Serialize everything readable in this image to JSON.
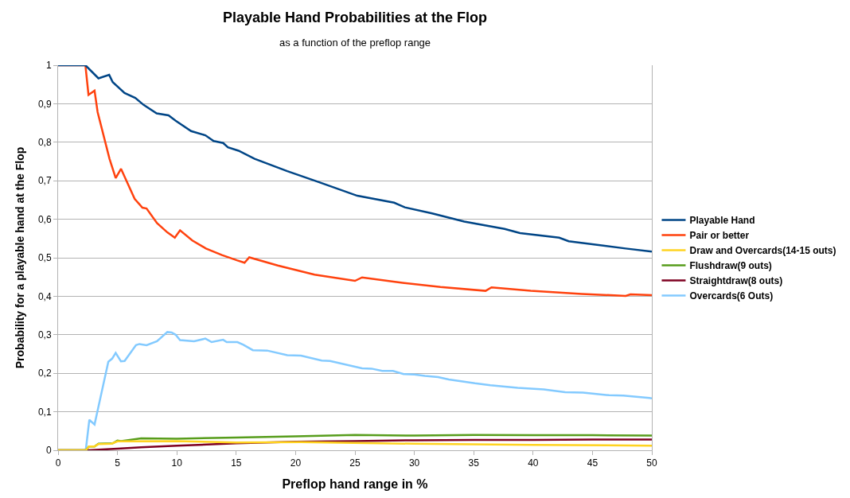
{
  "chart_data": {
    "type": "line",
    "title": "Playable Hand Probabilities at the Flop",
    "subtitle": "as a function of the preflop range",
    "xlabel": "Preflop hand range in %",
    "ylabel": "Probability for a playable hand at the Flop",
    "xlim": [
      0,
      50
    ],
    "xticks": [
      0,
      5,
      10,
      15,
      20,
      25,
      30,
      35,
      40,
      45,
      50
    ],
    "ylim": [
      0,
      1
    ],
    "yticks": [
      0,
      {
        "value": 0.1,
        "label": "0,1"
      },
      {
        "value": 0.2,
        "label": "0,2"
      },
      {
        "value": 0.3,
        "label": "0,3"
      },
      {
        "value": 0.4,
        "label": "0,4"
      },
      {
        "value": 0.5,
        "label": "0,5"
      },
      {
        "value": 0.6,
        "label": "0,6"
      },
      {
        "value": 0.7,
        "label": "0,7"
      },
      {
        "value": 0.8,
        "label": "0,8"
      },
      {
        "value": 0.9,
        "label": "0,9"
      },
      1
    ],
    "grid": "y",
    "legend": "right",
    "marker": "none",
    "line_style": "solid",
    "series": [
      {
        "name": "Playable Hand",
        "color": "#004586",
        "x": [
          0,
          2.3,
          3.4,
          4.3,
          4.6,
          5.6,
          6.5,
          7.2,
          8.3,
          9.3,
          9.9,
          11.2,
          12.4,
          13.1,
          13.9,
          14.3,
          15.2,
          16.55,
          19.3,
          22,
          25.2,
          28.3,
          29.2,
          31.5,
          34.2,
          37.6,
          38.9,
          42.2,
          43,
          47.8,
          50
        ],
        "values": [
          1,
          1,
          0.966,
          0.975,
          0.956,
          0.928,
          0.915,
          0.897,
          0.875,
          0.87,
          0.856,
          0.829,
          0.818,
          0.803,
          0.798,
          0.787,
          0.778,
          0.757,
          0.725,
          0.696,
          0.661,
          0.643,
          0.631,
          0.615,
          0.594,
          0.575,
          0.564,
          0.552,
          0.543,
          0.524,
          0.516
        ]
      },
      {
        "name": "Pair or better",
        "color": "#ff420e",
        "x": [
          0,
          2.3,
          2.56,
          3.07,
          3.33,
          4.33,
          4.85,
          5.3,
          6.45,
          7.1,
          7.45,
          8.33,
          9.2,
          9.83,
          10.27,
          11.3,
          12.45,
          13.8,
          15.1,
          15.7,
          16.1,
          18.5,
          21.6,
          25,
          25.6,
          29,
          32.2,
          36,
          36.5,
          39.8,
          44.1,
          47.8,
          48.2,
          50
        ],
        "values": [
          1,
          1,
          0.923,
          0.934,
          0.878,
          0.757,
          0.707,
          0.731,
          0.653,
          0.63,
          0.628,
          0.59,
          0.566,
          0.552,
          0.571,
          0.545,
          0.524,
          0.507,
          0.493,
          0.487,
          0.501,
          0.48,
          0.456,
          0.44,
          0.449,
          0.435,
          0.424,
          0.414,
          0.423,
          0.414,
          0.406,
          0.401,
          0.405,
          0.403
        ]
      },
      {
        "name": "Draw and Overcards(14-15 outs)",
        "color": "#ffd320",
        "x": [
          0,
          2.33,
          2.6,
          3.07,
          3.4,
          4.5,
          5,
          10,
          15,
          20.45,
          30,
          40,
          50
        ],
        "values": [
          0,
          0,
          0.01,
          0.01,
          0.016,
          0.017,
          0.023,
          0.024,
          0.02,
          0.021,
          0.017,
          0.014,
          0.012
        ]
      },
      {
        "name": "Flushdraw(9 outs)",
        "color": "#579d1c",
        "x": [
          0,
          2.33,
          2.6,
          3.07,
          3.4,
          4.6,
          5,
          5.3,
          7,
          10,
          15,
          20,
          25,
          30,
          35,
          40,
          45,
          50
        ],
        "values": [
          0,
          0,
          0.01,
          0.01,
          0.017,
          0.018,
          0.025,
          0.024,
          0.031,
          0.03,
          0.033,
          0.036,
          0.04,
          0.038,
          0.04,
          0.039,
          0.039,
          0.038
        ]
      },
      {
        "name": "Straightdraw(8 outs)",
        "color": "#7e0021",
        "x": [
          0,
          2.5,
          5,
          7,
          10,
          15,
          20,
          25,
          30,
          35,
          40,
          45,
          50
        ],
        "values": [
          0,
          0,
          0.004,
          0.008,
          0.012,
          0.018,
          0.022,
          0.024,
          0.026,
          0.027,
          0.027,
          0.028,
          0.028
        ]
      },
      {
        "name": "Overcards(6 Outs)",
        "color": "#83caff",
        "x": [
          0,
          2.33,
          2.63,
          3.07,
          4.23,
          4.55,
          4.85,
          5.29,
          5.6,
          6.56,
          6.85,
          7.45,
          8.33,
          9.2,
          9.56,
          9.9,
          10.27,
          11.45,
          12.4,
          12.93,
          13.9,
          14.2,
          15.1,
          15.6,
          16.4,
          17.6,
          19.3,
          20.45,
          22.2,
          22.9,
          25.6,
          26.4,
          27.3,
          28.2,
          29.1,
          30,
          30.9,
          32,
          32.9,
          35.1,
          36.4,
          38.7,
          40.9,
          42.7,
          44.2,
          46.4,
          47.6,
          49.8,
          50
        ],
        "values": [
          0,
          0,
          0.079,
          0.067,
          0.23,
          0.238,
          0.253,
          0.231,
          0.232,
          0.273,
          0.276,
          0.273,
          0.283,
          0.307,
          0.306,
          0.3,
          0.286,
          0.283,
          0.29,
          0.281,
          0.287,
          0.281,
          0.281,
          0.274,
          0.26,
          0.259,
          0.247,
          0.246,
          0.233,
          0.232,
          0.213,
          0.212,
          0.206,
          0.206,
          0.198,
          0.197,
          0.193,
          0.19,
          0.184,
          0.174,
          0.169,
          0.162,
          0.158,
          0.151,
          0.15,
          0.143,
          0.142,
          0.136,
          0.135
        ]
      }
    ]
  }
}
